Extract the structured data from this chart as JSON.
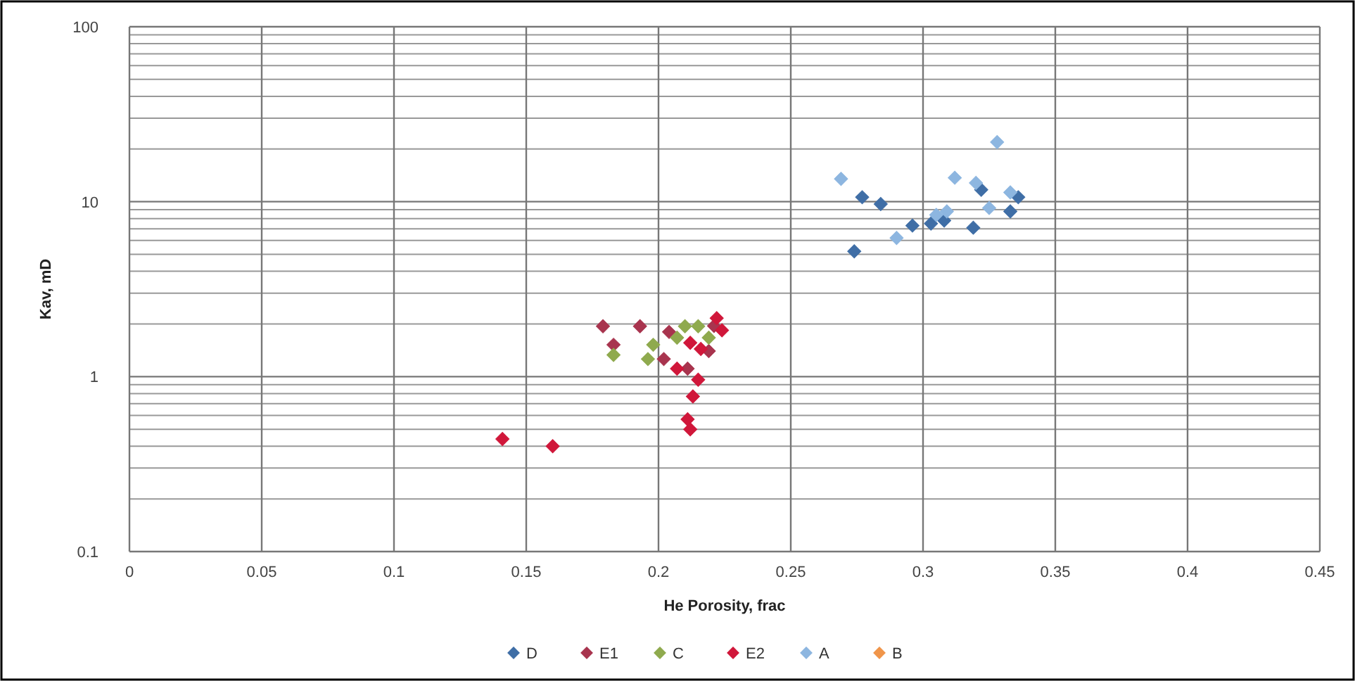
{
  "chart_data": {
    "type": "scatter",
    "xlabel": "He Porosity, frac",
    "ylabel": "Kav, mD",
    "log": "y",
    "grid": true,
    "legend": "bottom",
    "marker": "diamond",
    "xlim": [
      0,
      0.45
    ],
    "xticks": [
      0,
      0.05,
      0.1,
      0.15,
      0.2,
      0.25,
      0.3,
      0.35,
      0.4,
      0.45
    ],
    "ylim": [
      0.1,
      100
    ],
    "yticks": [
      0.1,
      1,
      10,
      100
    ],
    "series": [
      {
        "name": "D",
        "color": "#3f6ea6",
        "x": [
          0.277,
          0.284,
          0.322,
          0.336,
          0.333,
          0.296,
          0.303,
          0.308,
          0.319,
          0.274
        ],
        "values": [
          10.6,
          9.7,
          11.7,
          10.6,
          8.8,
          7.3,
          7.5,
          7.8,
          7.1,
          5.2
        ]
      },
      {
        "name": "E1",
        "color": "#a8344e",
        "x": [
          0.179,
          0.183,
          0.193,
          0.202,
          0.204,
          0.211,
          0.219,
          0.221
        ],
        "values": [
          1.94,
          1.52,
          1.94,
          1.26,
          1.8,
          1.11,
          1.4,
          1.95
        ]
      },
      {
        "name": "C",
        "color": "#8faa4e",
        "x": [
          0.183,
          0.198,
          0.207,
          0.21,
          0.215,
          0.219,
          0.196
        ],
        "values": [
          1.33,
          1.52,
          1.67,
          1.94,
          1.94,
          1.67,
          1.26
        ]
      },
      {
        "name": "E2",
        "color": "#d0173a",
        "x": [
          0.222,
          0.224,
          0.216,
          0.212,
          0.207,
          0.215,
          0.213,
          0.211,
          0.212,
          0.141,
          0.16
        ],
        "values": [
          2.16,
          1.84,
          1.44,
          1.56,
          1.11,
          0.96,
          0.77,
          0.57,
          0.5,
          0.44,
          0.4
        ]
      },
      {
        "name": "A",
        "color": "#8db6e0",
        "x": [
          0.328,
          0.269,
          0.312,
          0.32,
          0.333,
          0.325,
          0.305,
          0.309,
          0.29
        ],
        "values": [
          21.9,
          13.5,
          13.7,
          12.8,
          11.3,
          9.2,
          8.4,
          8.8,
          6.2
        ]
      },
      {
        "name": "B",
        "color": "#f0954a"
      }
    ]
  }
}
